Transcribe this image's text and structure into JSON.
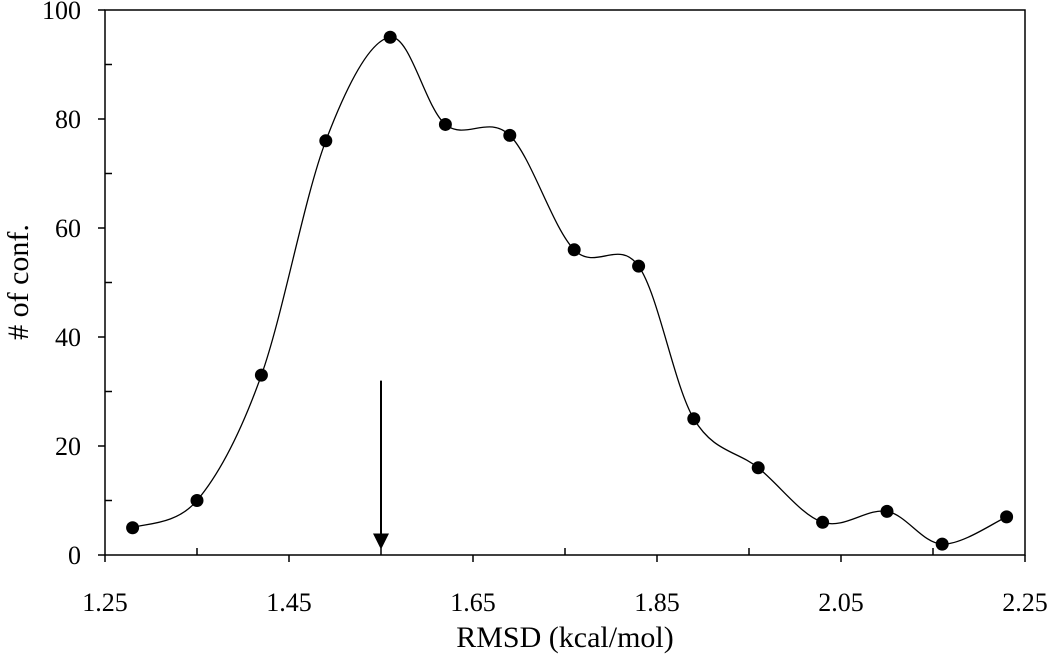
{
  "chart_data": {
    "type": "line",
    "title": "",
    "xlabel": "RMSD (kcal/mol)",
    "ylabel": "# of conf.",
    "xlim": [
      1.25,
      2.25
    ],
    "ylim": [
      0,
      100
    ],
    "x_ticks": [
      "1.25",
      "1.45",
      "1.65",
      "1.85",
      "2.05",
      "2.25"
    ],
    "y_ticks": [
      "0",
      "20",
      "40",
      "60",
      "80",
      "100"
    ],
    "x_tick_values": [
      1.25,
      1.45,
      1.65,
      1.85,
      2.05,
      2.25
    ],
    "y_tick_values": [
      0,
      20,
      40,
      60,
      80,
      100
    ],
    "grid": false,
    "legend": "none",
    "series": [
      {
        "x": [
          1.28,
          1.35,
          1.42,
          1.49,
          1.56,
          1.62,
          1.69,
          1.76,
          1.83,
          1.89,
          1.96,
          2.03,
          2.1,
          2.16,
          2.23
        ],
        "y": [
          5,
          10,
          33,
          76,
          95,
          79,
          77,
          56,
          53,
          25,
          16,
          6,
          8,
          2,
          7
        ],
        "color": "#000000",
        "marker": "circle",
        "smooth": true
      }
    ],
    "annotations": [
      {
        "type": "arrow",
        "x": 1.55,
        "y_from": 32,
        "y_to": 1,
        "color": "#000000"
      }
    ]
  }
}
